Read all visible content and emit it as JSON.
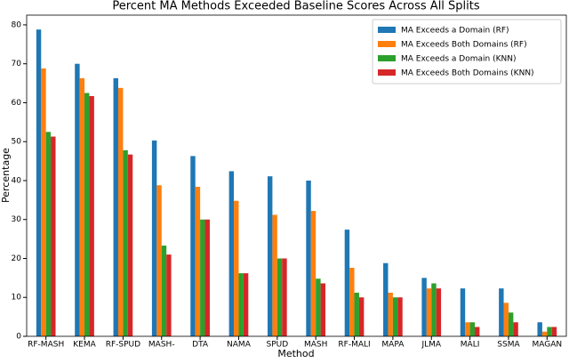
{
  "chart_data": {
    "type": "bar",
    "title": "Percent MA Methods Exceeded Baseline Scores Across All Splits",
    "x_label": "Method",
    "y_label": "Percentage",
    "categories": [
      "RF-MASH",
      "KEMA",
      "RF-SPUD",
      "MASH-",
      "DTA",
      "NAMA",
      "SPUD",
      "MASH",
      "RF-MALI",
      "MAPA",
      "JLMA",
      "MALI",
      "SSMA",
      "MAGAN"
    ],
    "series": [
      {
        "name": "MA Exceeds a Domain (RF)",
        "color": "#1f77b4",
        "values": [
          78.8,
          70,
          66.3,
          50.3,
          46.3,
          42.4,
          41.1,
          40,
          27.4,
          18.8,
          15,
          12.3,
          12.3,
          3.6
        ]
      },
      {
        "name": "MA Exceeds Both Domains (RF)",
        "color": "#ff7f0e",
        "values": [
          68.8,
          66.3,
          63.8,
          38.8,
          38.4,
          34.8,
          31.2,
          32.2,
          17.6,
          11.2,
          12.3,
          3.6,
          8.6,
          1.2
        ]
      },
      {
        "name": "MA Exceeds a Domain (KNN)",
        "color": "#2ca02c",
        "values": [
          52.5,
          62.5,
          47.8,
          23.3,
          30,
          16.2,
          20,
          14.8,
          11.2,
          10,
          13.6,
          3.6,
          6.1,
          2.4
        ]
      },
      {
        "name": "MA Exceeds Both Domains (KNN)",
        "color": "#d62728",
        "values": [
          51.3,
          61.7,
          46.7,
          21,
          30,
          16.2,
          20,
          13.6,
          10,
          10,
          12.3,
          2.4,
          3.6,
          2.4
        ]
      }
    ],
    "ylim": [
      0,
      82.5
    ],
    "yticks": [
      0,
      10,
      20,
      30,
      40,
      50,
      60,
      70,
      80
    ],
    "grid": false,
    "legend": "upper right"
  }
}
